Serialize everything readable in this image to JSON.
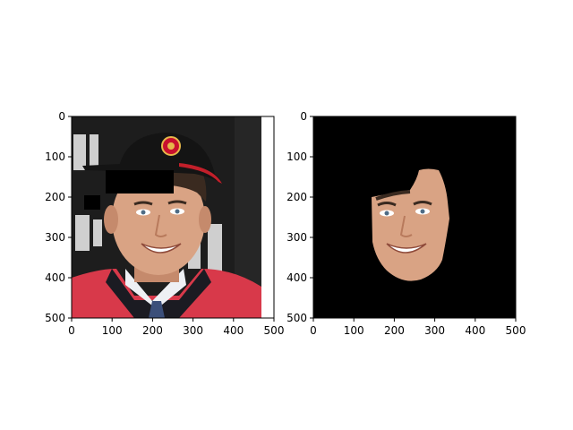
{
  "figure": {
    "panels": [
      {
        "id": "left-panel",
        "content": "photo of young man in black baseball cap with hockey team logo, white collared shirt, dark sweater over red jacket; a black rectangular mask covers part of the forehead and hair"
      },
      {
        "id": "right-panel",
        "content": "same face cropped by segmentation mask; background is black"
      }
    ]
  },
  "chart_data": [
    {
      "type": "image",
      "title": "",
      "xlabel": "",
      "ylabel": "",
      "xlim": [
        0,
        500
      ],
      "ylim": [
        500,
        0
      ],
      "x_ticks": [
        0,
        100,
        200,
        300,
        400,
        500
      ],
      "y_ticks": [
        0,
        100,
        200,
        300,
        400,
        500
      ],
      "grid": false
    },
    {
      "type": "image",
      "title": "",
      "xlabel": "",
      "ylabel": "",
      "xlim": [
        0,
        500
      ],
      "ylim": [
        500,
        0
      ],
      "x_ticks": [
        0,
        100,
        200,
        300,
        400,
        500
      ],
      "y_ticks": [
        0,
        100,
        200,
        300,
        400,
        500
      ],
      "grid": false
    }
  ],
  "colors": {
    "frame": "#000000",
    "mask_background": "#000000",
    "skin": "#d9a384",
    "skin_shadow": "#b87a5c",
    "hair": "#3a2a20",
    "cap": "#141414",
    "cap_brim_stripe": "#c21f2a",
    "jacket": "#d8394a",
    "shirt": "#eef0f4",
    "sweater": "#1b1b22",
    "tie": "#3b4f7a",
    "bg_dark": "#1d1d1d",
    "bg_light_text": "#e6e6e6"
  }
}
